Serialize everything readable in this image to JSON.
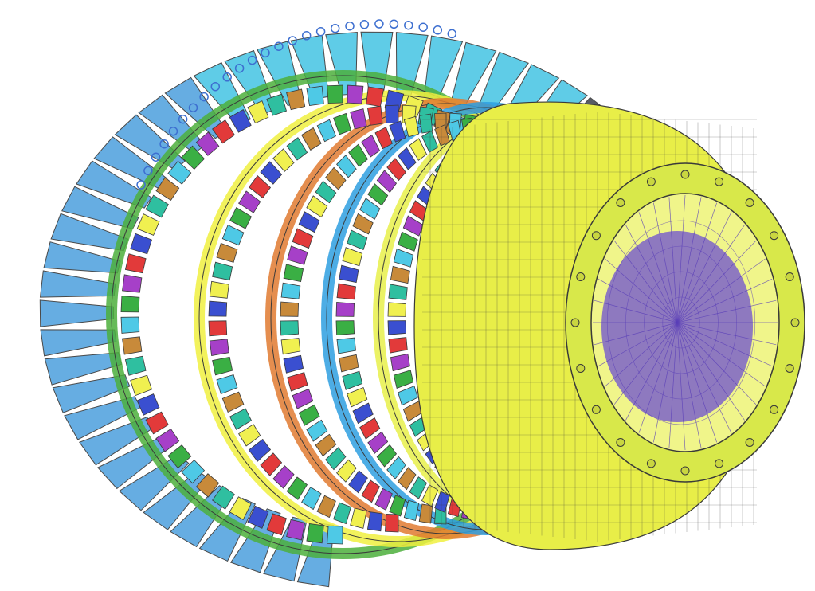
{
  "image": {
    "subject": "finite-element-mesh",
    "object": "turbomachinery-rotor-stator-assembly",
    "background_color": "#ffffff",
    "mesh_line_color": "#3a3a3a",
    "stage_colors": [
      "#5aa7e0",
      "#52c8e6",
      "#4caf3c",
      "#f0f040",
      "#e07a30",
      "#2e9fe0",
      "#e8f04a"
    ],
    "blade_palette": [
      "#4ec9e6",
      "#3aaf44",
      "#a640c8",
      "#e23a3a",
      "#3a4fd0",
      "#f0f050",
      "#2fbfa0",
      "#c88a3a"
    ],
    "casing_color": "#e8ee48",
    "bore_color": "#6e4fd0",
    "marker_color": "#3d6fd0"
  }
}
